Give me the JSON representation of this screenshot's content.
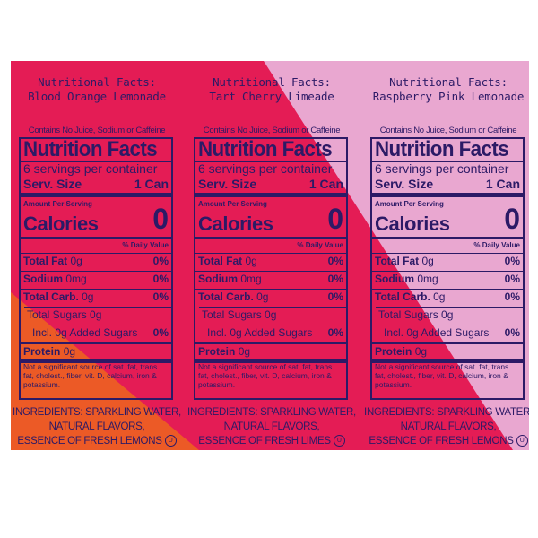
{
  "colors": {
    "orange": "#ec5a26",
    "crimson": "#e41c55",
    "pink": "#e9a7d0",
    "ink": "#2c1a66"
  },
  "columns": [
    {
      "heading_line1": "Nutritional Facts:",
      "heading_line2": "Blood Orange Lemonade",
      "note": "Contains No Juice, Sodium or Caffeine",
      "panel": {
        "title": "Nutrition Facts",
        "servings": "6 servings per container",
        "serv_size_label": "Serv. Size",
        "serv_size_value": "1 Can",
        "amount_per_serving": "Amount Per Serving",
        "calories_label": "Calories",
        "calories_value": "0",
        "daily_value_header": "% Daily Value",
        "rows": [
          {
            "label": "Total Fat",
            "amount": "0g",
            "dv": "0%"
          },
          {
            "label": "Sodium",
            "amount": "0mg",
            "dv": "0%"
          },
          {
            "label": "Total Carb.",
            "amount": "0g",
            "dv": "0%"
          },
          {
            "label": "Total Sugars 0g",
            "amount": "",
            "dv": ""
          },
          {
            "label": "Incl. 0g Added Sugars",
            "amount": "",
            "dv": "0%"
          },
          {
            "label": "Protein",
            "amount": "0g",
            "dv": ""
          }
        ],
        "footnote": "Not a significant source of sat. fat, trans fat, cholest., fiber, vit. D, calcium, iron & potassium."
      },
      "ingredients_line1": "INGREDIENTS: SPARKLING WATER,",
      "ingredients_line2": "NATURAL FLAVORS,",
      "ingredients_line3": "ESSENCE OF FRESH LEMONS",
      "kosher_mark": "U"
    },
    {
      "heading_line1": "Nutritional Facts:",
      "heading_line2": "Tart Cherry Limeade",
      "note": "Contains No Juice, Sodium or Caffeine",
      "panel": {
        "title": "Nutrition Facts",
        "servings": "6 servings per container",
        "serv_size_label": "Serv. Size",
        "serv_size_value": "1 Can",
        "amount_per_serving": "Amount Per Serving",
        "calories_label": "Calories",
        "calories_value": "0",
        "daily_value_header": "% Daily Value",
        "rows": [
          {
            "label": "Total Fat",
            "amount": "0g",
            "dv": "0%"
          },
          {
            "label": "Sodium",
            "amount": "0mg",
            "dv": "0%"
          },
          {
            "label": "Total Carb.",
            "amount": "0g",
            "dv": "0%"
          },
          {
            "label": "Total Sugars 0g",
            "amount": "",
            "dv": ""
          },
          {
            "label": "Incl. 0g Added Sugars",
            "amount": "",
            "dv": "0%"
          },
          {
            "label": "Protein",
            "amount": "0g",
            "dv": ""
          }
        ],
        "footnote": "Not a significant source of sat. fat, trans fat, cholest., fiber, vit. D, calcium, iron & potassium."
      },
      "ingredients_line1": "INGREDIENTS: SPARKLING WATER,",
      "ingredients_line2": "NATURAL FLAVORS,",
      "ingredients_line3": "ESSENCE OF FRESH LIMES",
      "kosher_mark": "U"
    },
    {
      "heading_line1": "Nutritional Facts:",
      "heading_line2": "Raspberry Pink Lemonade",
      "note": "Contains No Juice, Sodium or Caffeine",
      "panel": {
        "title": "Nutrition Facts",
        "servings": "6 servings per container",
        "serv_size_label": "Serv. Size",
        "serv_size_value": "1 Can",
        "amount_per_serving": "Amount Per Serving",
        "calories_label": "Calories",
        "calories_value": "0",
        "daily_value_header": "% Daily Value",
        "rows": [
          {
            "label": "Total Fat",
            "amount": "0g",
            "dv": "0%"
          },
          {
            "label": "Sodium",
            "amount": "0mg",
            "dv": "0%"
          },
          {
            "label": "Total Carb.",
            "amount": "0g",
            "dv": "0%"
          },
          {
            "label": "Total Sugars 0g",
            "amount": "",
            "dv": ""
          },
          {
            "label": "Incl. 0g Added Sugars",
            "amount": "",
            "dv": "0%"
          },
          {
            "label": "Protein",
            "amount": "0g",
            "dv": ""
          }
        ],
        "footnote": "Not a significant source of sat. fat, trans fat, cholest., fiber, vit. D, calcium, iron & potassium."
      },
      "ingredients_line1": "INGREDIENTS: SPARKLING WATER,",
      "ingredients_line2": "NATURAL FLAVORS,",
      "ingredients_line3": "ESSENCE OF FRESH LEMONS",
      "kosher_mark": "U"
    }
  ]
}
